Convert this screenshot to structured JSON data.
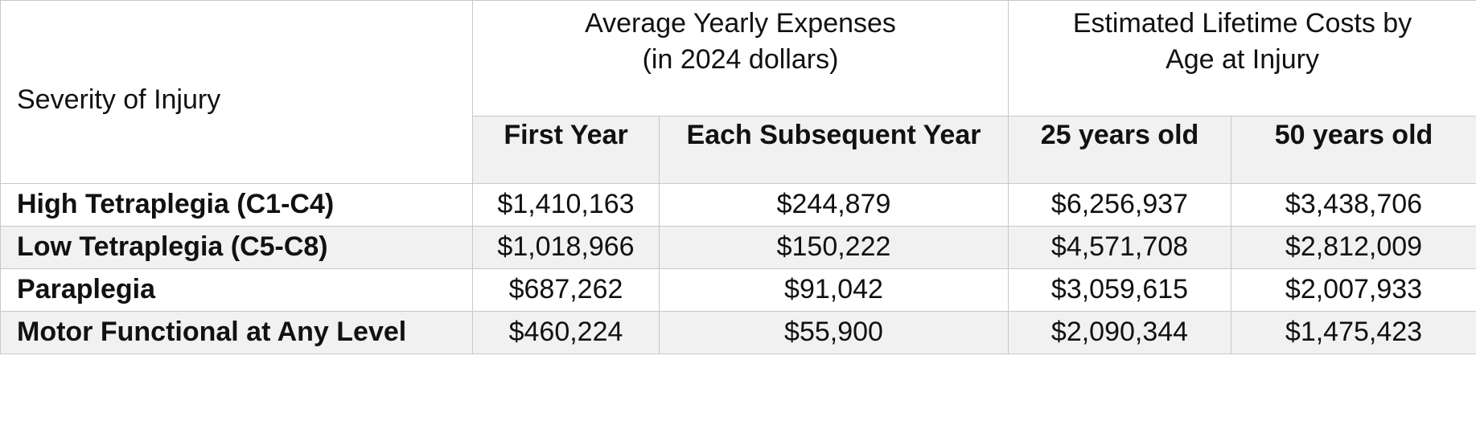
{
  "table": {
    "corner_label": "Severity of Injury",
    "group_headers": [
      {
        "line1": "Average Yearly Expenses",
        "line2": "(in 2024 dollars)"
      },
      {
        "line1": "Estimated Lifetime Costs by",
        "line2": "Age at Injury"
      }
    ],
    "sub_headers": [
      "First Year",
      "Each Subsequent Year",
      "25 years old",
      "50 years old"
    ],
    "rows": [
      {
        "label": "High Tetraplegia (C1-C4)",
        "values": [
          "$1,410,163",
          "$244,879",
          "$6,256,937",
          "$3,438,706"
        ]
      },
      {
        "label": "Low Tetraplegia (C5-C8)",
        "values": [
          "$1,018,966",
          "$150,222",
          "$4,571,708",
          "$2,812,009"
        ]
      },
      {
        "label": "Paraplegia",
        "values": [
          "$687,262",
          "$91,042",
          "$3,059,615",
          "$2,007,933"
        ]
      },
      {
        "label": "Motor Functional at Any Level",
        "values": [
          "$460,224",
          "$55,900",
          "$2,090,344",
          "$1,475,423"
        ]
      }
    ]
  }
}
